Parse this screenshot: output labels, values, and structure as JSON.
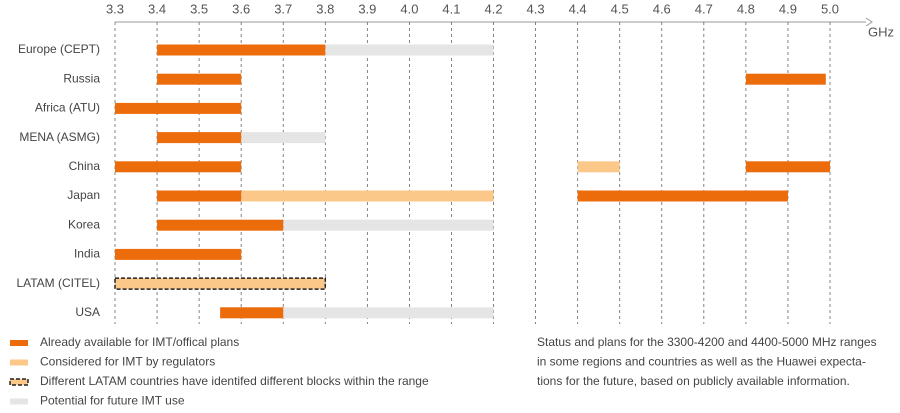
{
  "chart_data": {
    "type": "range",
    "xlabel": "GHz",
    "xlim": [
      3.3,
      5.0
    ],
    "xticks": [
      3.3,
      3.4,
      3.5,
      3.6,
      3.7,
      3.8,
      3.9,
      {
        "value": 4,
        "label": "4.0"
      },
      4.1,
      4.2,
      4.3,
      4.4,
      4.5,
      4.6,
      4.7,
      4.8,
      4.9,
      {
        "value": 5,
        "label": "5.0"
      }
    ],
    "grid": true,
    "categories": [
      "Europe (CEPT)",
      "Russia",
      "Africa (ATU)",
      "MENA (ASMG)",
      "China",
      "Japan",
      "Korea",
      "India",
      "LATAM (CITEL)",
      "USA"
    ],
    "series": [
      {
        "name": "Already available for IMT/offical plans",
        "color": "#ec6c0c",
        "values": [
          [
            [
              3.4,
              3.8
            ]
          ],
          [
            [
              3.4,
              3.6
            ],
            [
              4.8,
              4.99
            ]
          ],
          [
            [
              3.3,
              3.6
            ]
          ],
          [
            [
              3.4,
              3.6
            ]
          ],
          [
            [
              3.3,
              3.6
            ],
            [
              4.8,
              5.0
            ]
          ],
          [
            [
              3.4,
              3.6
            ],
            [
              4.4,
              4.9
            ]
          ],
          [
            [
              3.4,
              3.7
            ]
          ],
          [
            [
              3.3,
              3.6
            ]
          ],
          [],
          [
            [
              3.55,
              3.7
            ]
          ]
        ]
      },
      {
        "name": "Considered for IMT by regulators",
        "color": "#fbc88a",
        "values": [
          [],
          [],
          [],
          [],
          [
            [
              4.4,
              4.5
            ]
          ],
          [
            [
              3.6,
              4.2
            ]
          ],
          [],
          [],
          [],
          []
        ]
      },
      {
        "name": "Different LATAM countries have identifed different blocks within the range",
        "color": "#fbc88a",
        "border": "dashed",
        "values": [
          [],
          [],
          [],
          [],
          [],
          [],
          [],
          [],
          [
            [
              3.3,
              3.8
            ]
          ],
          []
        ]
      },
      {
        "name": "Potential for future IMT use",
        "color": "#e5e5e5",
        "values": [
          [
            [
              3.8,
              4.2
            ]
          ],
          [],
          [],
          [
            [
              3.6,
              3.8
            ]
          ],
          [],
          [],
          [
            [
              3.7,
              4.2
            ]
          ],
          [],
          [],
          [
            [
              3.55,
              4.2
            ]
          ]
        ]
      }
    ],
    "note": [
      "Status and plans for the 3300-4200 and 4400-5000 MHz ranges",
      "in some regions and countries as well as the Huawei expecta-",
      "tions for the future, based on publicly available information."
    ]
  }
}
